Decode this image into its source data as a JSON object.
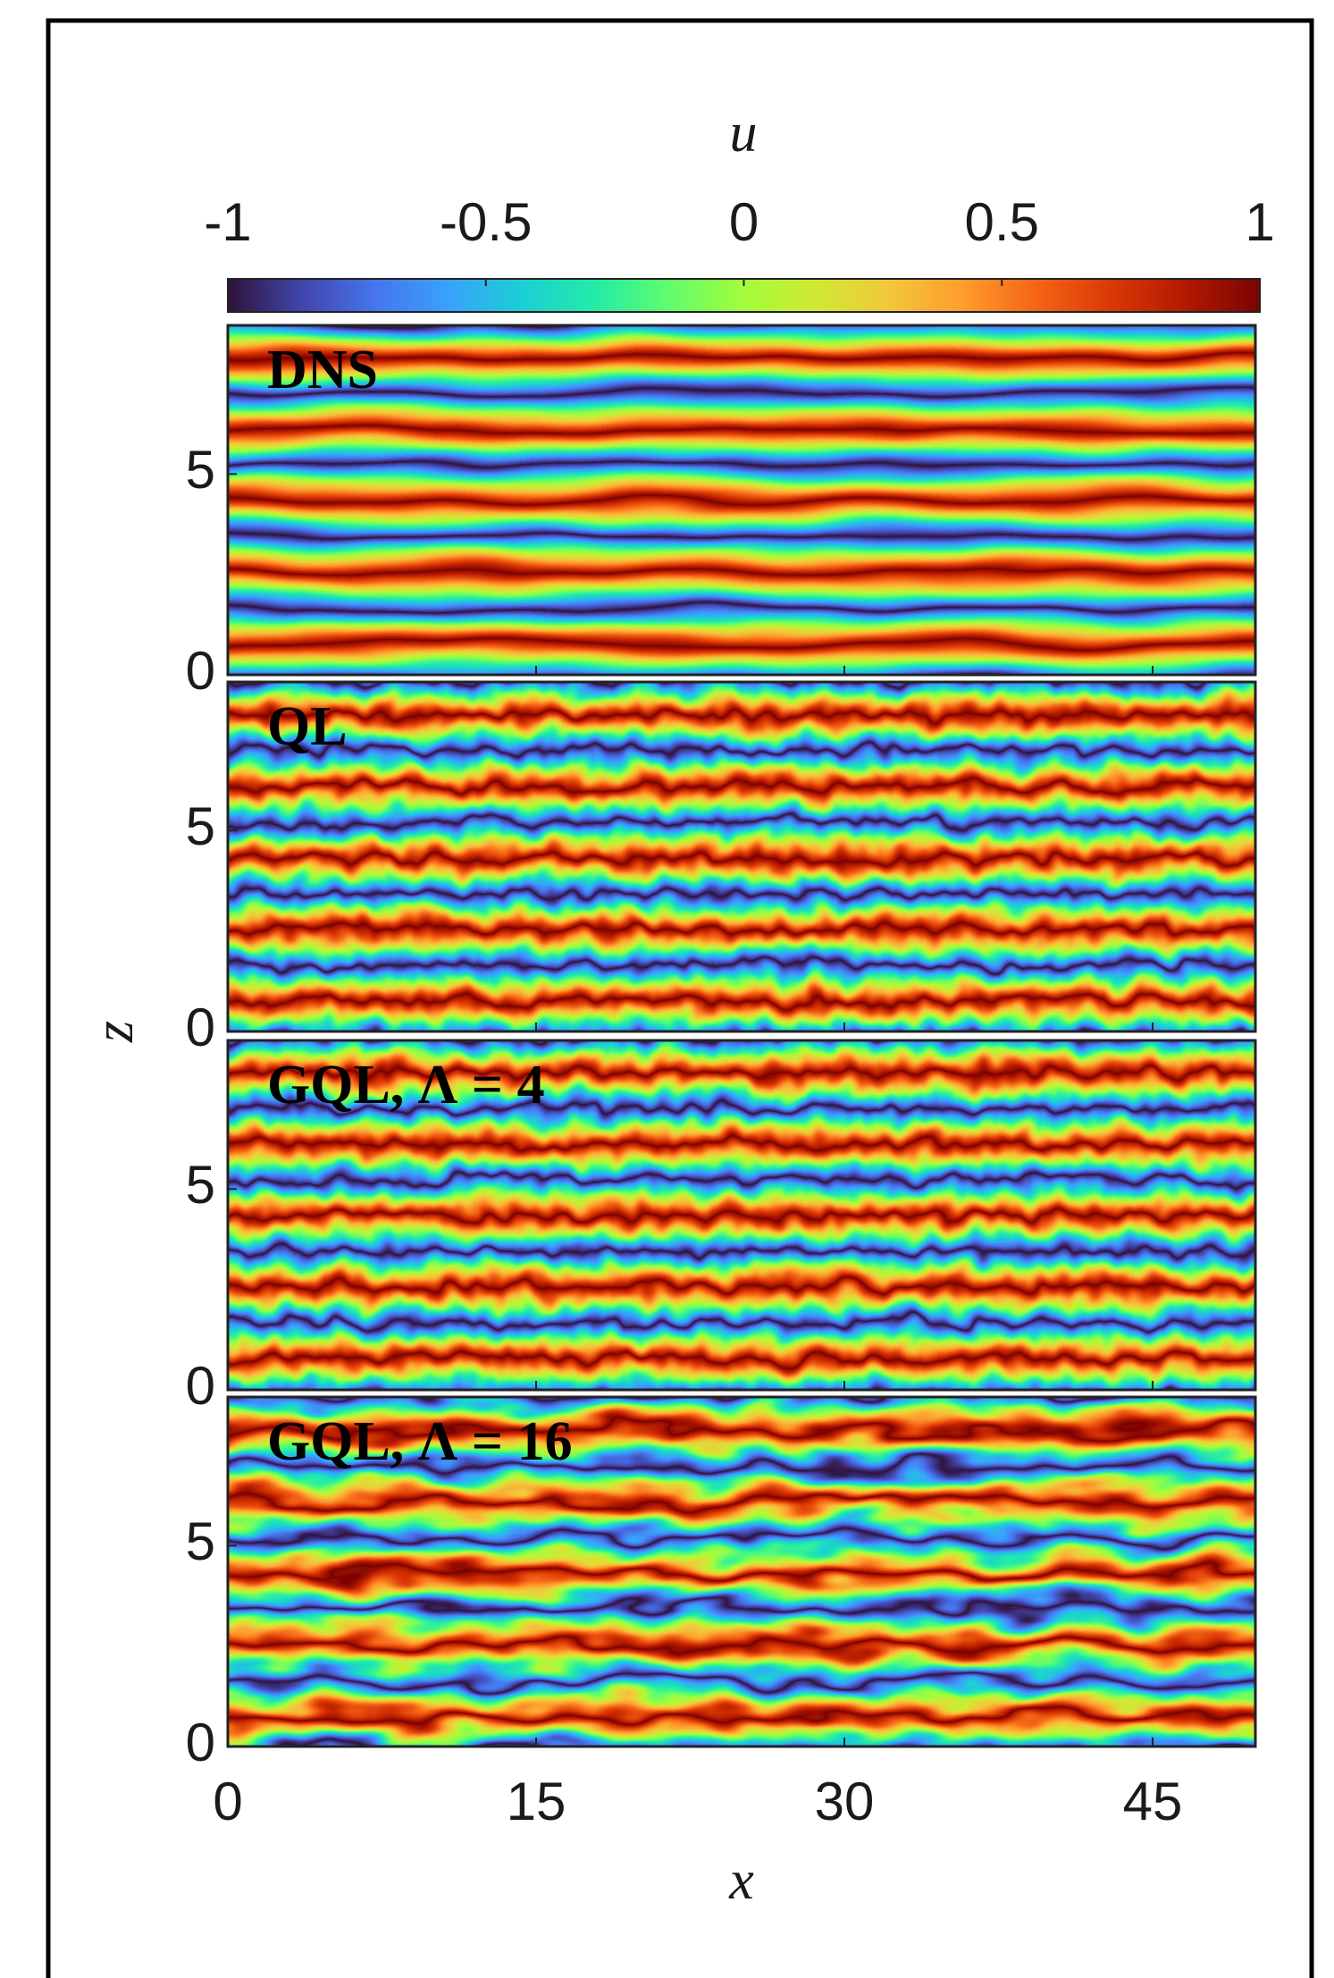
{
  "chart_data": {
    "type": "heatmap",
    "colorbar": {
      "label": "u",
      "lim": [
        -1,
        1
      ],
      "ticks": [
        -1,
        -0.5,
        0,
        0.5,
        1
      ],
      "colors": [
        "#30123b",
        "#4145ab",
        "#4675ed",
        "#39a2fc",
        "#1bcfd4",
        "#24eca6",
        "#61fc6c",
        "#a4fc3b",
        "#d1e834",
        "#f3c63a",
        "#fe9b2d",
        "#f36315",
        "#d93806",
        "#b11901",
        "#7a0402"
      ]
    },
    "xlabel": "x",
    "ylabel": "z",
    "xlim": [
      0,
      50
    ],
    "xticks": [
      0,
      15,
      30,
      45
    ],
    "ylim": [
      0,
      8.7
    ],
    "yticks": [
      0,
      5
    ],
    "panels": [
      {
        "label": "DNS"
      },
      {
        "label": "QL"
      },
      {
        "label": "GQL, Λ = 4"
      },
      {
        "label": "GQL, Λ = 16"
      }
    ]
  }
}
